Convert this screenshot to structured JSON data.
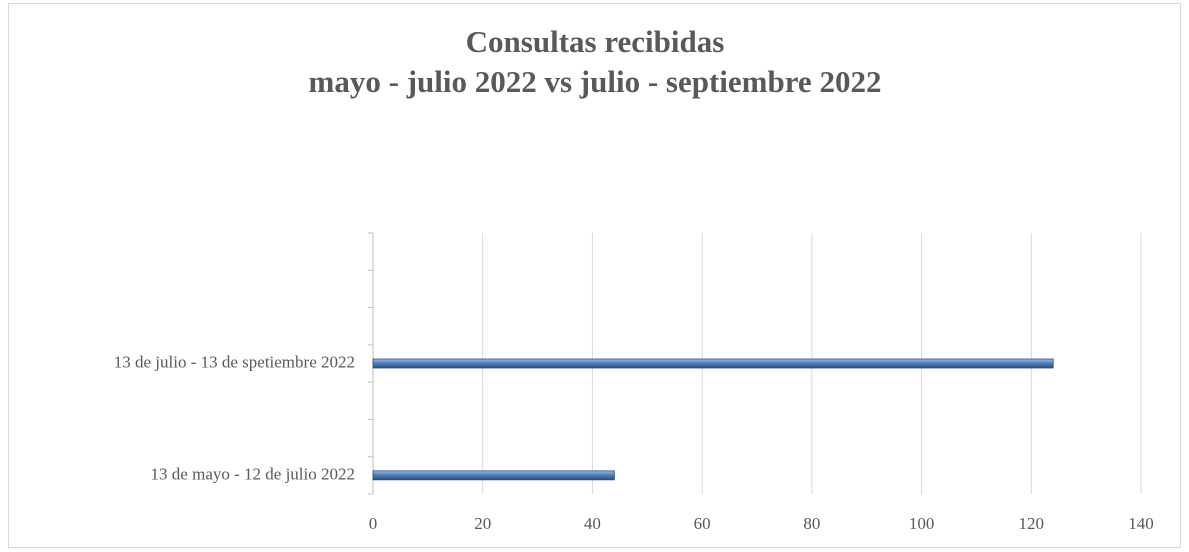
{
  "chart_data": {
    "type": "bar",
    "orientation": "horizontal",
    "title": "Consultas recibidas\nmayo - julio 2022 vs julio - septiembre 2022",
    "categories": [
      "13 de mayo - 12 de julio 2022",
      null,
      null,
      "13 de julio - 13 de spetiembre 2022",
      null,
      null,
      null
    ],
    "values": [
      44,
      null,
      null,
      124,
      null,
      null,
      null
    ],
    "color": "#4f81bd",
    "xlim": [
      0,
      140
    ],
    "xticks": [
      0,
      20,
      40,
      60,
      80,
      100,
      120,
      140
    ],
    "grid": true
  }
}
